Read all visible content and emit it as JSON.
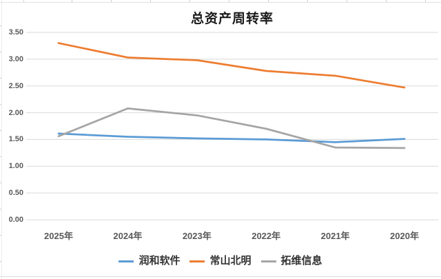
{
  "chart_data": {
    "type": "line",
    "title": "总资产周转率",
    "categories": [
      "2025年",
      "2024年",
      "2023年",
      "2022年",
      "2021年",
      "2020年"
    ],
    "series": [
      {
        "name": "润和软件",
        "color": "#5B9BD5",
        "values": [
          1.61,
          1.55,
          1.52,
          1.5,
          1.45,
          1.51
        ]
      },
      {
        "name": "常山北明",
        "color": "#ED7D31",
        "values": [
          3.3,
          3.03,
          2.98,
          2.78,
          2.69,
          2.47
        ]
      },
      {
        "name": "拓维信息",
        "color": "#A5A5A5",
        "values": [
          1.56,
          2.08,
          1.95,
          1.7,
          1.35,
          1.34
        ]
      }
    ],
    "y_ticks": [
      "3.50",
      "3.00",
      "2.50",
      "2.00",
      "1.50",
      "1.00",
      "0.50",
      "0.00"
    ],
    "ylim": [
      0,
      3.5
    ],
    "grid": true,
    "legend_position": "bottom",
    "gridline_color": "#d9d9d9",
    "axis_label_color": "#595959"
  }
}
